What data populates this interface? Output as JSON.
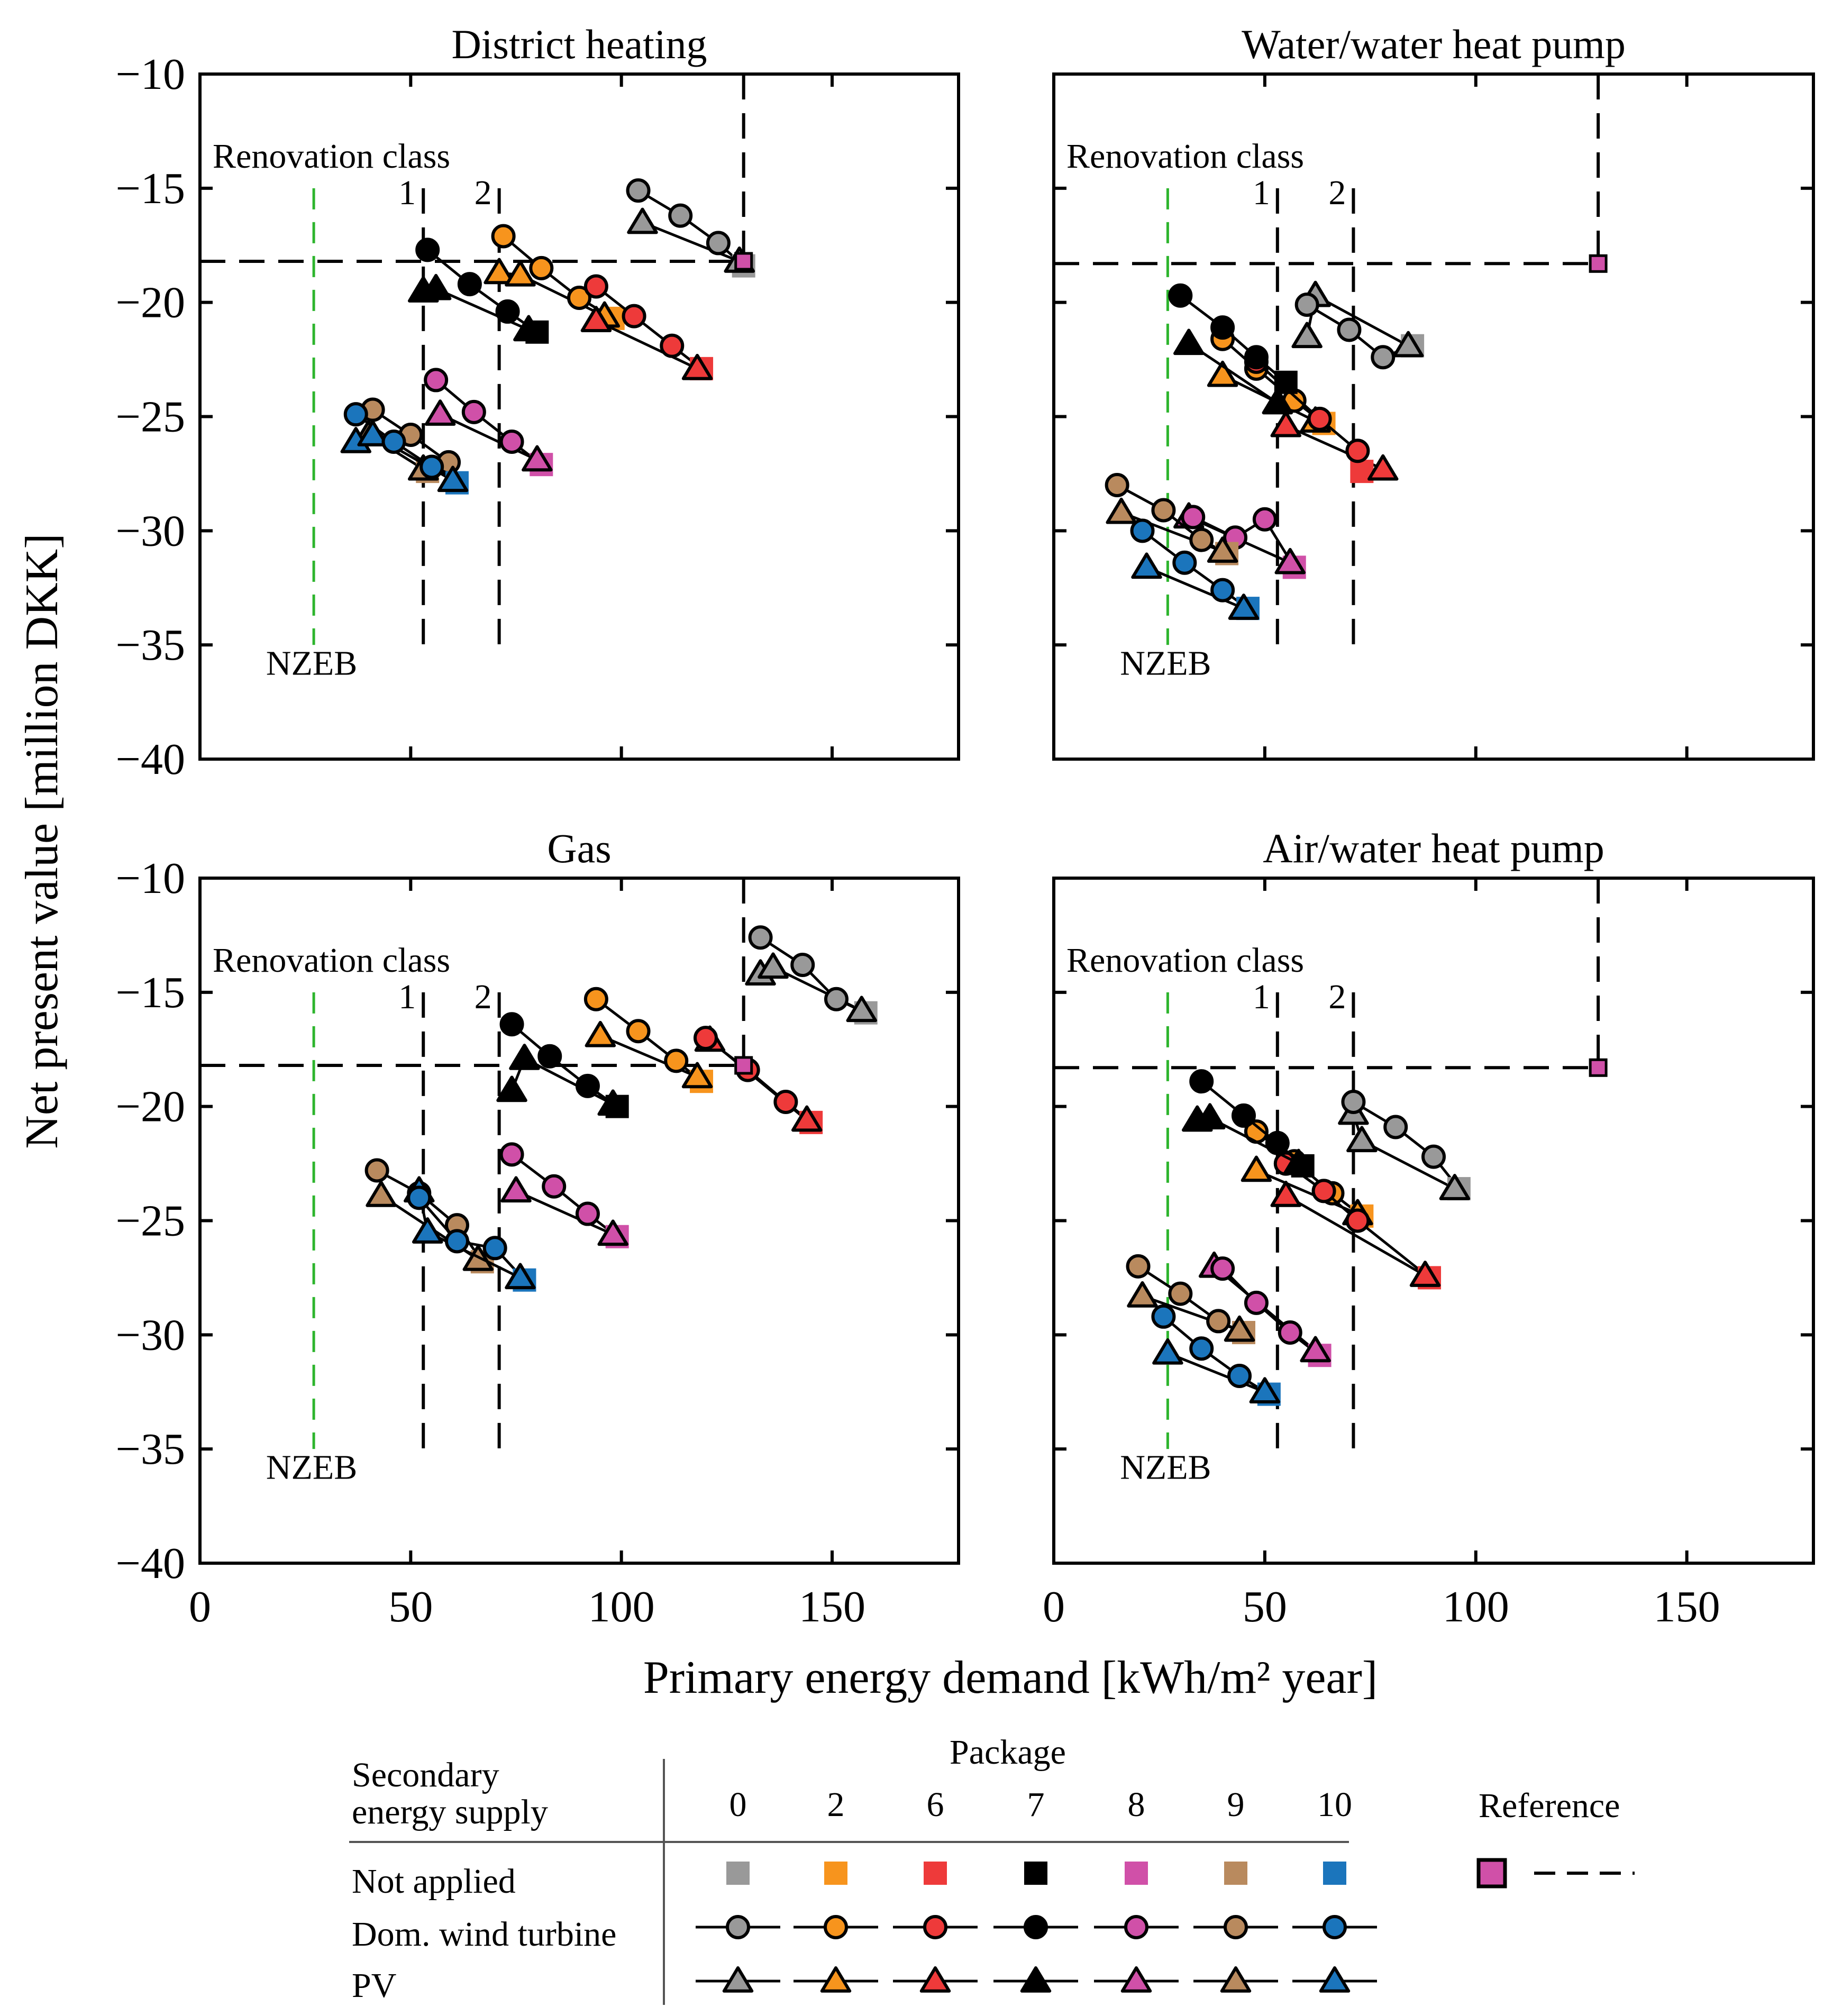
{
  "colors": {
    "package_0": "#999999",
    "package_2": "#f7941d",
    "package_6": "#ee3a3a",
    "package_7": "#000000",
    "package_8": "#d050a8",
    "package_9": "#b98a5e",
    "package_10": "#1b75bc",
    "reference": "#d050a8",
    "nzeb_line": "#2db52d"
  },
  "figure": {
    "xlabel": "Primary energy demand [kWh/m² year]",
    "ylabel": "Net present value [million DKK]",
    "xlim": [
      0,
      180
    ],
    "ylim": [
      -40,
      -10
    ],
    "xticks": [
      0,
      50,
      100,
      150
    ],
    "yticks": [
      -10,
      -15,
      -20,
      -25,
      -30,
      -35,
      -40
    ],
    "xtick_labels": [
      "0",
      "50",
      "100",
      "150"
    ],
    "ytick_labels": [
      "−10",
      "−15",
      "−20",
      "−25",
      "−30",
      "−35",
      "−40"
    ],
    "annotations": {
      "renovation_class": "Renovation class",
      "class_1": "1",
      "class_2": "2",
      "nzeb": "NZEB"
    }
  },
  "legend": {
    "header_secondary": "Secondary",
    "header_secondary2": "energy supply",
    "header_package": "Package",
    "header_reference": "Reference",
    "packages": [
      "0",
      "2",
      "6",
      "7",
      "8",
      "9",
      "10"
    ],
    "rows": [
      "Not applied",
      "Dom. wind turbine",
      "PV"
    ]
  },
  "chart_data": [
    {
      "type": "scatter",
      "title": "District heating",
      "reference": {
        "x": 129,
        "y": -18.2
      },
      "nzeb_x": 27,
      "class1_x": 53,
      "class2_x": 71,
      "series": [
        {
          "package": "0",
          "square": [
            129,
            -18.4
          ],
          "wind": [
            [
              104,
              -15.1
            ],
            [
              114,
              -16.2
            ],
            [
              123,
              -17.4
            ]
          ],
          "pv": [
            [
              105,
              -16.5
            ],
            [
              128,
              -18.2
            ]
          ]
        },
        {
          "package": "2",
          "square": [
            98,
            -20.7
          ],
          "wind": [
            [
              72,
              -17.1
            ],
            [
              81,
              -18.5
            ],
            [
              90,
              -19.8
            ]
          ],
          "pv": [
            [
              71,
              -18.7
            ],
            [
              76,
              -18.8
            ],
            [
              96,
              -20.6
            ]
          ]
        },
        {
          "package": "6",
          "square": [
            119,
            -22.9
          ],
          "wind": [
            [
              94,
              -19.3
            ],
            [
              103,
              -20.6
            ],
            [
              112,
              -21.9
            ]
          ],
          "pv": [
            [
              94,
              -20.8
            ],
            [
              118,
              -22.9
            ]
          ]
        },
        {
          "package": "7",
          "square": [
            80,
            -21.3
          ],
          "wind": [
            [
              54,
              -17.7
            ],
            [
              64,
              -19.2
            ],
            [
              73,
              -20.4
            ]
          ],
          "pv": [
            [
              53,
              -19.5
            ],
            [
              56,
              -19.4
            ],
            [
              78,
              -21.2
            ]
          ]
        },
        {
          "package": "8",
          "square": [
            81,
            -27.1
          ],
          "wind": [
            [
              56,
              -23.4
            ],
            [
              65,
              -24.8
            ],
            [
              74,
              -26.1
            ]
          ],
          "pv": [
            [
              57,
              -24.9
            ],
            [
              80,
              -26.9
            ]
          ]
        },
        {
          "package": "9",
          "square": [
            54,
            -27.4
          ],
          "wind": [
            [
              41,
              -24.7
            ],
            [
              50,
              -25.8
            ],
            [
              59,
              -27.0
            ]
          ],
          "pv": [
            [
              40,
              -25.8
            ],
            [
              53,
              -27.3
            ]
          ]
        },
        {
          "package": "10",
          "square": [
            61,
            -27.9
          ],
          "wind": [
            [
              37,
              -24.9
            ],
            [
              46,
              -26.1
            ],
            [
              55,
              -27.2
            ]
          ],
          "pv": [
            [
              37,
              -26.1
            ],
            [
              41,
              -25.8
            ],
            [
              60,
              -27.8
            ]
          ]
        }
      ]
    },
    {
      "type": "scatter",
      "title": "Water/water heat pump",
      "reference": {
        "x": 129,
        "y": -18.3
      },
      "nzeb_x": 27,
      "class1_x": 53,
      "class2_x": 71,
      "series": [
        {
          "package": "0",
          "square": [
            85,
            -21.9
          ],
          "wind": [
            [
              60,
              -20.1
            ],
            [
              70,
              -21.2
            ],
            [
              78,
              -22.4
            ]
          ],
          "pv": [
            [
              60,
              -21.5
            ],
            [
              62,
              -19.7
            ],
            [
              84,
              -21.9
            ]
          ]
        },
        {
          "package": "2",
          "square": [
            64,
            -25.3
          ],
          "wind": [
            [
              40,
              -21.6
            ],
            [
              48,
              -22.9
            ],
            [
              57,
              -24.3
            ]
          ],
          "pv": [
            [
              40,
              -23.2
            ],
            [
              62,
              -25.2
            ]
          ]
        },
        {
          "package": "6",
          "square": [
            73,
            -27.4
          ],
          "wind": [
            [
              48,
              -22.6
            ],
            [
              63,
              -25.1
            ],
            [
              72,
              -26.5
            ]
          ],
          "pv": [
            [
              55,
              -25.4
            ],
            [
              78,
              -27.3
            ]
          ]
        },
        {
          "package": "7",
          "square": [
            55,
            -23.5
          ],
          "wind": [
            [
              30,
              -19.7
            ],
            [
              40,
              -21.1
            ],
            [
              48,
              -22.4
            ]
          ],
          "pv": [
            [
              32,
              -21.8
            ],
            [
              53,
              -24.4
            ]
          ]
        },
        {
          "package": "8",
          "square": [
            57,
            -31.6
          ],
          "wind": [
            [
              33,
              -29.4
            ],
            [
              43,
              -30.3
            ],
            [
              50,
              -29.5
            ]
          ],
          "pv": [
            [
              32,
              -29.4
            ],
            [
              56,
              -31.4
            ]
          ]
        },
        {
          "package": "9",
          "square": [
            41,
            -31.0
          ],
          "wind": [
            [
              15,
              -28.0
            ],
            [
              26,
              -29.1
            ],
            [
              35,
              -30.4
            ]
          ],
          "pv": [
            [
              16,
              -29.2
            ],
            [
              40,
              -30.9
            ]
          ]
        },
        {
          "package": "10",
          "square": [
            46,
            -33.4
          ],
          "wind": [
            [
              21,
              -30.0
            ],
            [
              31,
              -31.4
            ],
            [
              40,
              -32.6
            ]
          ],
          "pv": [
            [
              22,
              -31.6
            ],
            [
              45,
              -33.4
            ]
          ]
        }
      ]
    },
    {
      "type": "scatter",
      "title": "Gas",
      "reference": {
        "x": 129,
        "y": -18.2
      },
      "nzeb_x": 27,
      "class1_x": 53,
      "class2_x": 71,
      "series": [
        {
          "package": "0",
          "square": [
            158,
            -15.9
          ],
          "wind": [
            [
              133,
              -12.6
            ],
            [
              143,
              -13.8
            ],
            [
              151,
              -15.3
            ]
          ],
          "pv": [
            [
              133,
              -14.2
            ],
            [
              136,
              -13.9
            ],
            [
              157,
              -15.8
            ]
          ]
        },
        {
          "package": "2",
          "square": [
            119,
            -18.9
          ],
          "wind": [
            [
              94,
              -15.3
            ],
            [
              104,
              -16.7
            ],
            [
              113,
              -18.0
            ]
          ],
          "pv": [
            [
              95,
              -16.9
            ],
            [
              118,
              -18.7
            ]
          ]
        },
        {
          "package": "6",
          "square": [
            145,
            -20.7
          ],
          "wind": [
            [
              120,
              -17.0
            ],
            [
              130,
              -18.4
            ],
            [
              139,
              -19.8
            ]
          ],
          "pv": [
            [
              121,
              -17.1
            ],
            [
              144,
              -20.6
            ]
          ]
        },
        {
          "package": "7",
          "square": [
            99,
            -20.0
          ],
          "wind": [
            [
              74,
              -16.4
            ],
            [
              83,
              -17.8
            ],
            [
              92,
              -19.1
            ]
          ],
          "pv": [
            [
              74,
              -19.3
            ],
            [
              77,
              -17.9
            ],
            [
              98,
              -19.9
            ]
          ]
        },
        {
          "package": "8",
          "square": [
            99,
            -25.7
          ],
          "wind": [
            [
              74,
              -22.1
            ],
            [
              84,
              -23.5
            ],
            [
              92,
              -24.7
            ]
          ],
          "pv": [
            [
              75,
              -23.7
            ],
            [
              98,
              -25.6
            ]
          ]
        },
        {
          "package": "9",
          "square": [
            67,
            -26.8
          ],
          "wind": [
            [
              42,
              -22.8
            ],
            [
              52,
              -23.8
            ],
            [
              61,
              -25.2
            ]
          ],
          "pv": [
            [
              43,
              -23.9
            ],
            [
              66,
              -26.7
            ]
          ]
        },
        {
          "package": "10",
          "square": [
            77,
            -27.6
          ],
          "wind": [
            [
              52,
              -24.0
            ],
            [
              61,
              -25.9
            ],
            [
              70,
              -26.2
            ]
          ],
          "pv": [
            [
              52,
              -23.7
            ],
            [
              54,
              -25.5
            ],
            [
              76,
              -27.5
            ]
          ]
        }
      ]
    },
    {
      "type": "scatter",
      "title": "Air/water heat pump",
      "reference": {
        "x": 129,
        "y": -18.3
      },
      "nzeb_x": 27,
      "class1_x": 53,
      "class2_x": 71,
      "series": [
        {
          "package": "0",
          "square": [
            96,
            -23.6
          ],
          "wind": [
            [
              71,
              -19.8
            ],
            [
              81,
              -20.9
            ],
            [
              90,
              -22.2
            ]
          ],
          "pv": [
            [
              71,
              -20.3
            ],
            [
              73,
              -21.5
            ],
            [
              95,
              -23.6
            ]
          ]
        },
        {
          "package": "2",
          "square": [
            73,
            -24.8
          ],
          "wind": [
            [
              48,
              -21.1
            ],
            [
              57,
              -22.4
            ],
            [
              66,
              -23.8
            ]
          ],
          "pv": [
            [
              48,
              -22.8
            ],
            [
              72,
              -24.7
            ]
          ]
        },
        {
          "package": "6",
          "square": [
            89,
            -27.5
          ],
          "wind": [
            [
              55,
              -22.5
            ],
            [
              64,
              -23.7
            ],
            [
              72,
              -25.0
            ]
          ],
          "pv": [
            [
              55,
              -23.9
            ],
            [
              88,
              -27.4
            ]
          ]
        },
        {
          "package": "7",
          "square": [
            59,
            -22.6
          ],
          "wind": [
            [
              35,
              -18.9
            ],
            [
              45,
              -20.4
            ],
            [
              53,
              -21.6
            ]
          ],
          "pv": [
            [
              34,
              -20.6
            ],
            [
              37,
              -20.5
            ],
            [
              58,
              -22.5
            ]
          ]
        },
        {
          "package": "8",
          "square": [
            63,
            -30.9
          ],
          "wind": [
            [
              40,
              -27.1
            ],
            [
              48,
              -28.6
            ],
            [
              56,
              -29.9
            ]
          ],
          "pv": [
            [
              38,
              -27.0
            ],
            [
              62,
              -30.7
            ]
          ]
        },
        {
          "package": "9",
          "square": [
            45,
            -29.9
          ],
          "wind": [
            [
              20,
              -27.0
            ],
            [
              30,
              -28.2
            ],
            [
              39,
              -29.4
            ]
          ],
          "pv": [
            [
              21,
              -28.3
            ],
            [
              44,
              -29.8
            ]
          ]
        },
        {
          "package": "10",
          "square": [
            51,
            -32.6
          ],
          "wind": [
            [
              26,
              -29.2
            ],
            [
              35,
              -30.6
            ],
            [
              44,
              -31.8
            ]
          ],
          "pv": [
            [
              27,
              -30.8
            ],
            [
              50,
              -32.5
            ]
          ]
        }
      ]
    }
  ]
}
